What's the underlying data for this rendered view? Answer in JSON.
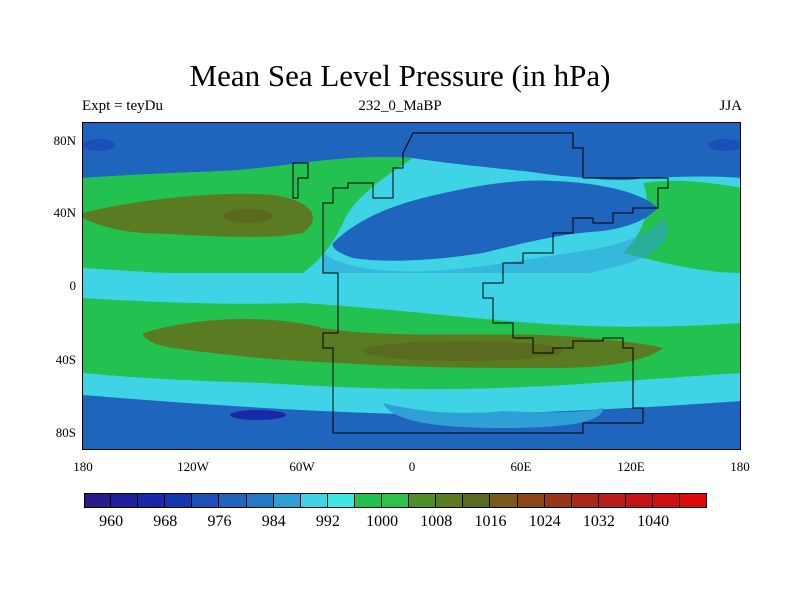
{
  "title": "Mean Sea Level Pressure (in hPa)",
  "subtitle_left": "Expt = teyDu",
  "subtitle_center": "232_0_MaBP",
  "subtitle_right": "JJA",
  "lat_labels": [
    "80N",
    "40N",
    "0",
    "40S",
    "80S"
  ],
  "lon_labels": [
    "180",
    "120W",
    "60W",
    "0",
    "60E",
    "120E",
    "180"
  ],
  "colorbar": {
    "colors": [
      "#2a1a8c",
      "#201e9a",
      "#1a28a8",
      "#1437b0",
      "#1a50b8",
      "#1f64bd",
      "#2479c6",
      "#2fa0d6",
      "#3ed4e6",
      "#3de8e0",
      "#22c150",
      "#2ec24d",
      "#4e8e2a",
      "#5a7b22",
      "#5a6a1e",
      "#7a5a1a",
      "#8a4618",
      "#9a3616",
      "#a8281a",
      "#b51c1a",
      "#c4141a",
      "#d00e12",
      "#dd0a0a"
    ],
    "labels": [
      "960",
      "968",
      "976",
      "984",
      "992",
      "1000",
      "1008",
      "1016",
      "1024",
      "1032",
      "1040"
    ]
  }
}
